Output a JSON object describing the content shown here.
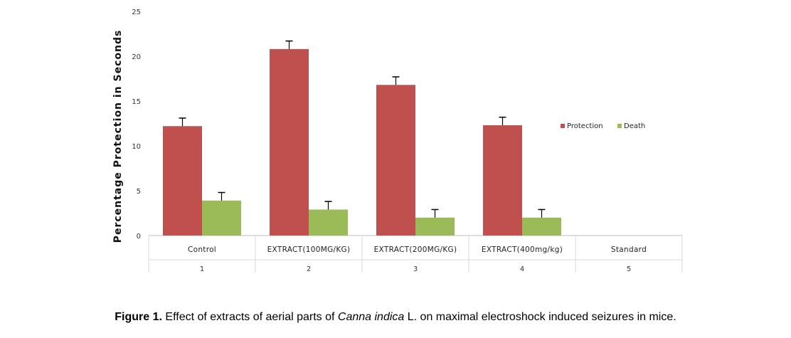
{
  "chart_data": {
    "type": "bar",
    "ylabel": "Percentage Protection in Seconds",
    "ylim": [
      0,
      25
    ],
    "yticks": [
      0,
      5,
      10,
      15,
      20,
      25
    ],
    "categories": [
      "Control",
      "EXTRACT(100MG/KG)",
      "EXTRACT(200MG/KG)",
      "EXTRACT(400mg/kg)",
      "Standard"
    ],
    "category_numbers": [
      "1",
      "2",
      "3",
      "4",
      "5"
    ],
    "series": [
      {
        "name": "Protection",
        "color": "#c0504d",
        "values": [
          12.2,
          20.8,
          16.8,
          12.3,
          0
        ],
        "errors": [
          0.9,
          0.9,
          0.9,
          0.9,
          0
        ]
      },
      {
        "name": "Death",
        "color": "#9bbb59",
        "values": [
          3.9,
          2.9,
          2.0,
          2.0,
          0
        ],
        "errors": [
          0.9,
          0.9,
          0.9,
          0.9,
          0
        ]
      }
    ],
    "legend_position": "right"
  },
  "caption": {
    "label": "Figure 1.",
    "text_before": " Effect of extracts of aerial parts of ",
    "species": "Canna indica",
    "text_after": " L. on maximal electroshock induced seizures in mice."
  }
}
